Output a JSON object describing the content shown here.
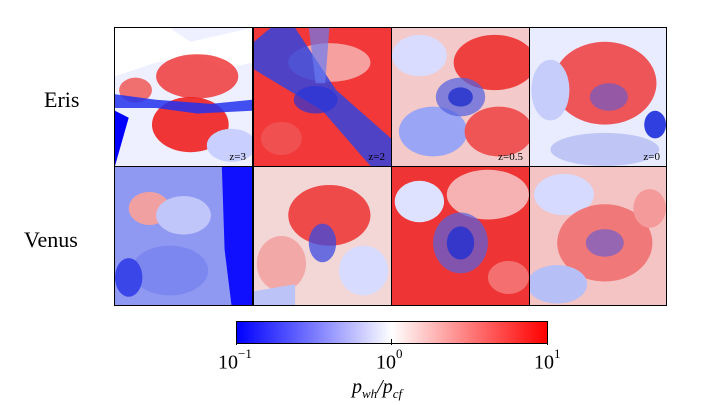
{
  "rows": [
    {
      "label": "Eris",
      "panels": [
        {
          "z": "z=3"
        },
        {
          "z": "z=2"
        },
        {
          "z": "z=0.5"
        },
        {
          "z": "z=0"
        }
      ]
    },
    {
      "label": "Venus",
      "panels": [
        {
          "z": ""
        },
        {
          "z": ""
        },
        {
          "z": ""
        },
        {
          "z": ""
        }
      ]
    }
  ],
  "colorbar": {
    "ticks": [
      {
        "base": "10",
        "exp": "−1"
      },
      {
        "base": "10",
        "exp": "0"
      },
      {
        "base": "10",
        "exp": "1"
      }
    ],
    "label_main": "p",
    "label_sub1": "wh",
    "label_slash": "/p",
    "label_sub2": "cf",
    "colors": {
      "low": "#0000ff",
      "mid": "#ffffff",
      "high": "#ff0000"
    }
  }
}
